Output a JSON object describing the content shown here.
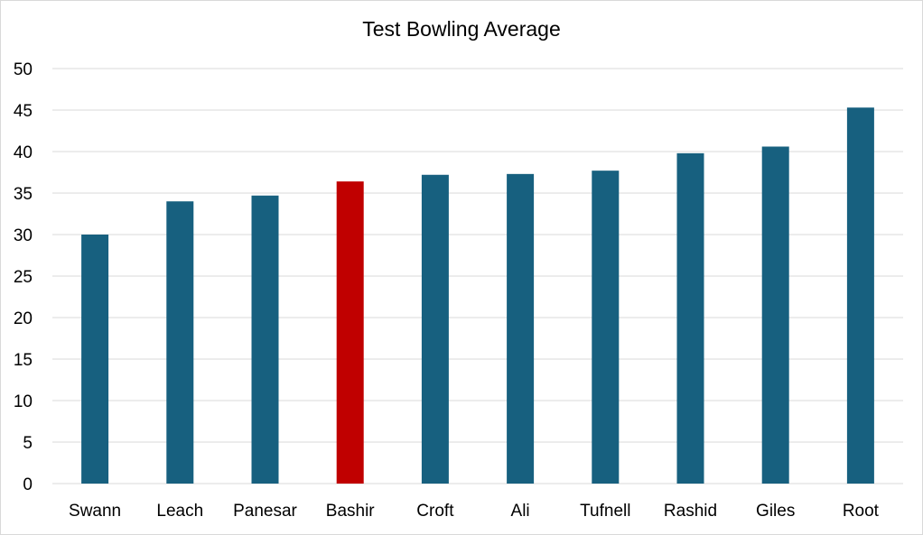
{
  "chart_data": {
    "type": "bar",
    "title": "Test Bowling Average",
    "xlabel": "",
    "ylabel": "",
    "categories": [
      "Swann",
      "Leach",
      "Panesar",
      "Bashir",
      "Croft",
      "Ali",
      "Tufnell",
      "Rashid",
      "Giles",
      "Root"
    ],
    "values": [
      30.0,
      34.0,
      34.7,
      36.4,
      37.2,
      37.3,
      37.7,
      39.8,
      40.6,
      45.3
    ],
    "highlight_index": 3,
    "ylim": [
      0,
      50
    ],
    "yticks": [
      0,
      5,
      10,
      15,
      20,
      25,
      30,
      35,
      40,
      45,
      50
    ],
    "grid": true,
    "legend": "none",
    "colors": {
      "bar": "#17607f",
      "highlight": "#c00000",
      "grid": "#d9d9d9"
    }
  }
}
